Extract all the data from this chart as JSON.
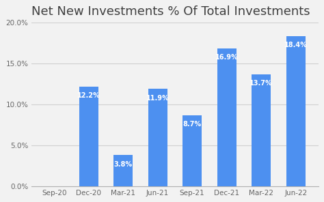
{
  "title": "Net New Investments % Of Total Investments",
  "categories": [
    "Sep-20",
    "Dec-20",
    "Mar-21",
    "Jun-21",
    "Sep-21",
    "Dec-21",
    "Mar-22",
    "Jun-22"
  ],
  "values": [
    0.0,
    12.2,
    3.8,
    11.9,
    8.7,
    16.9,
    13.7,
    18.4
  ],
  "bar_color": "#4d90f0",
  "background_color": "#f2f2f2",
  "plot_bg_color": "#f2f2f2",
  "label_color": "#ffffff",
  "title_color": "#404040",
  "grid_color": "#d0d0d0",
  "axis_line_color": "#b0b0b0",
  "ylim": [
    0,
    20
  ],
  "yticks": [
    0,
    5,
    10,
    15,
    20
  ],
  "ytick_labels": [
    "0.0%",
    "5.0%",
    "10.0%",
    "15.0%",
    "20.0%"
  ],
  "title_fontsize": 13,
  "label_fontsize": 7.0,
  "tick_fontsize": 7.5,
  "bar_width": 0.55
}
